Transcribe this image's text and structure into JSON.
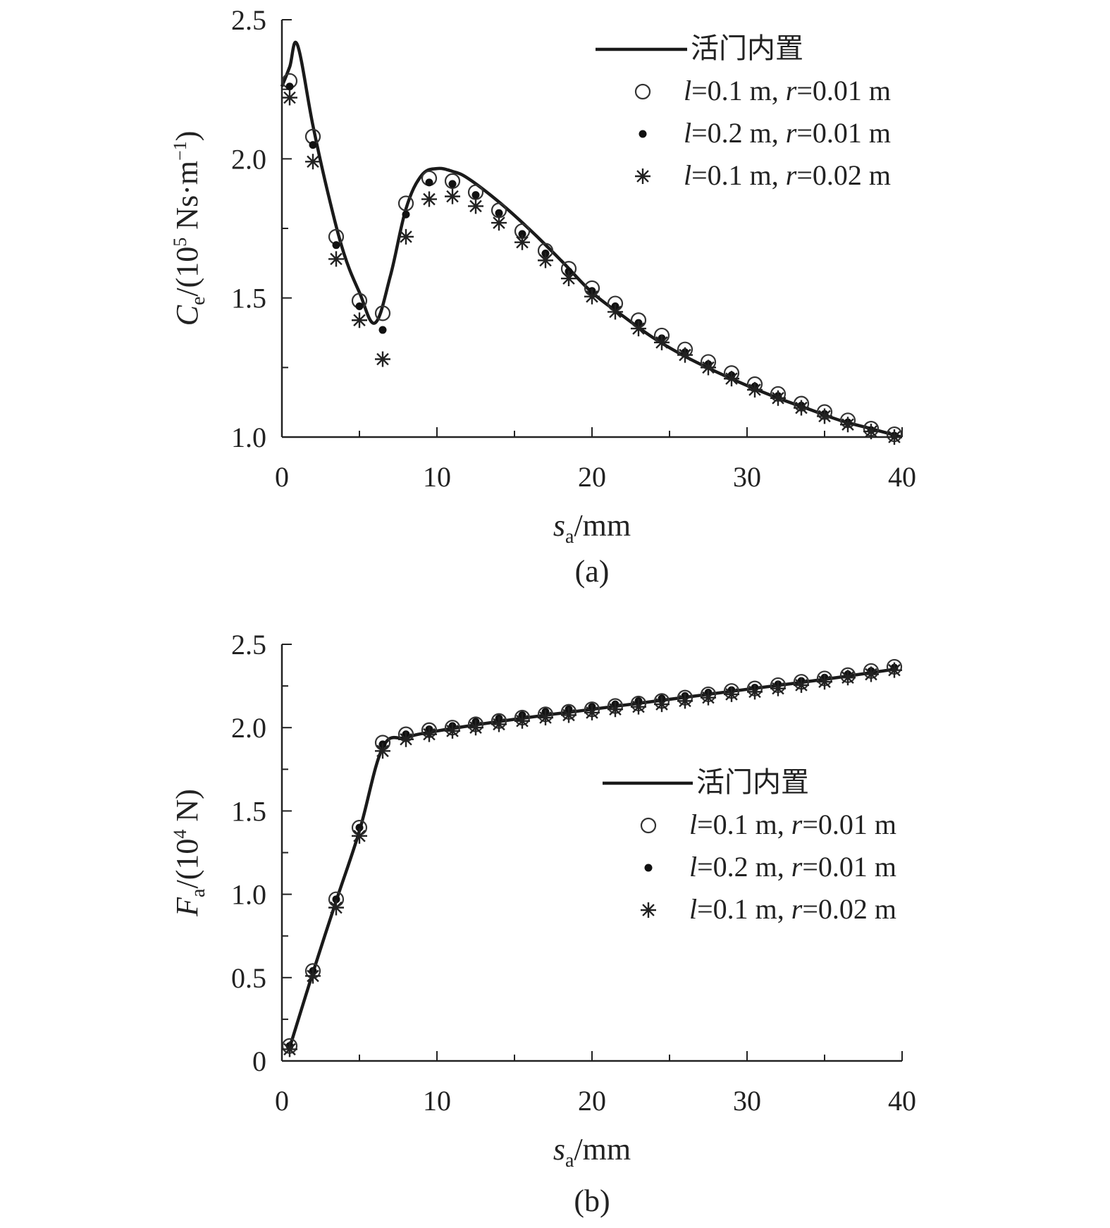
{
  "chart_data": [
    {
      "type": "line",
      "panel_label": "(a)",
      "xlabel": {
        "main": "s",
        "sub": "a",
        "unit": "/mm"
      },
      "ylabel": {
        "main": "C",
        "sub": "e",
        "pre": "/(10",
        "exp": "5",
        "mid": " Ns·m",
        "exp2": "−1",
        "post": ")"
      },
      "xlim": [
        0,
        40
      ],
      "ylim": [
        1.0,
        2.5
      ],
      "xticks": [
        0,
        10,
        20,
        30,
        40
      ],
      "yticks": [
        1.0,
        1.5,
        2.0,
        2.5
      ],
      "xtick_labels": [
        "0",
        "10",
        "20",
        "30",
        "40"
      ],
      "ytick_labels": [
        "1.0",
        "1.5",
        "2.0",
        "2.5"
      ],
      "legend_position": "top-right",
      "series": [
        {
          "name": "活门内置",
          "marker": "line",
          "x": [
            0,
            0.5,
            1,
            2,
            3,
            4,
            5,
            6,
            7,
            8,
            9,
            10,
            11,
            12,
            14,
            16,
            18,
            20,
            22,
            24,
            26,
            28,
            30,
            32,
            34,
            36,
            38,
            40
          ],
          "y": [
            2.26,
            2.33,
            2.41,
            2.12,
            1.87,
            1.66,
            1.52,
            1.41,
            1.58,
            1.82,
            1.94,
            1.965,
            1.955,
            1.93,
            1.845,
            1.745,
            1.635,
            1.52,
            1.435,
            1.355,
            1.29,
            1.235,
            1.185,
            1.14,
            1.1,
            1.06,
            1.03,
            1.0
          ]
        },
        {
          "name_parts": [
            "l",
            "=0.1 m, ",
            "r",
            "=0.01 m"
          ],
          "marker": "circle",
          "x": [
            0.5,
            2,
            3.5,
            5,
            6.5,
            8,
            9.5,
            11,
            12.5,
            14,
            15.5,
            17,
            18.5,
            20,
            21.5,
            23,
            24.5,
            26,
            27.5,
            29,
            30.5,
            32,
            33.5,
            35,
            36.5,
            38,
            39.5
          ],
          "y": [
            2.28,
            2.08,
            1.72,
            1.49,
            1.445,
            1.84,
            1.93,
            1.92,
            1.88,
            1.815,
            1.74,
            1.67,
            1.605,
            1.535,
            1.48,
            1.42,
            1.365,
            1.315,
            1.27,
            1.23,
            1.19,
            1.155,
            1.12,
            1.09,
            1.06,
            1.03,
            1.01
          ]
        },
        {
          "name_parts": [
            "l",
            "=0.2 m, ",
            "r",
            "=0.01 m"
          ],
          "marker": "dot",
          "x": [
            0.5,
            2,
            3.5,
            5,
            6.5,
            8,
            9.5,
            11,
            12.5,
            14,
            15.5,
            17,
            18.5,
            20,
            21.5,
            23,
            24.5,
            26,
            27.5,
            29,
            30.5,
            32,
            33.5,
            35,
            36.5,
            38,
            39.5
          ],
          "y": [
            2.26,
            2.05,
            1.69,
            1.47,
            1.385,
            1.8,
            1.915,
            1.91,
            1.87,
            1.805,
            1.73,
            1.66,
            1.595,
            1.525,
            1.47,
            1.41,
            1.355,
            1.305,
            1.262,
            1.222,
            1.182,
            1.148,
            1.113,
            1.083,
            1.053,
            1.025,
            1.005
          ]
        },
        {
          "name_parts": [
            "l",
            "=0.1 m, ",
            "r",
            "=0.02 m"
          ],
          "marker": "asterisk",
          "x": [
            0.5,
            2,
            3.5,
            5,
            6.5,
            8,
            9.5,
            11,
            12.5,
            14,
            15.5,
            17,
            18.5,
            20,
            21.5,
            23,
            24.5,
            26,
            27.5,
            29,
            30.5,
            32,
            33.5,
            35,
            36.5,
            38,
            39.5
          ],
          "y": [
            2.22,
            1.99,
            1.64,
            1.42,
            1.28,
            1.72,
            1.855,
            1.865,
            1.83,
            1.77,
            1.7,
            1.635,
            1.57,
            1.505,
            1.45,
            1.39,
            1.34,
            1.295,
            1.25,
            1.21,
            1.17,
            1.14,
            1.105,
            1.075,
            1.045,
            1.02,
            1.0
          ]
        }
      ]
    },
    {
      "type": "line",
      "panel_label": "(b)",
      "xlabel": {
        "main": "s",
        "sub": "a",
        "unit": "/mm"
      },
      "ylabel": {
        "main": "F",
        "sub": "a",
        "pre": "/(10",
        "exp": "4",
        "mid": " N",
        "exp2": "",
        "post": ")"
      },
      "xlim": [
        0,
        40
      ],
      "ylim": [
        0,
        2.5
      ],
      "xticks": [
        0,
        10,
        20,
        30,
        40
      ],
      "yticks": [
        0,
        0.5,
        1.0,
        1.5,
        2.0,
        2.5
      ],
      "xtick_labels": [
        "0",
        "10",
        "20",
        "30",
        "40"
      ],
      "ytick_labels": [
        "0",
        "0.5",
        "1.0",
        "1.5",
        "2.0",
        "2.5"
      ],
      "legend_position": "center-right",
      "series": [
        {
          "name": "活门内置",
          "marker": "line",
          "x": [
            0.5,
            2,
            3.5,
            5,
            6.5,
            8,
            10,
            15,
            20,
            25,
            30,
            35,
            39.5
          ],
          "y": [
            0.08,
            0.53,
            0.96,
            1.38,
            1.88,
            1.94,
            1.98,
            2.05,
            2.11,
            2.17,
            2.23,
            2.29,
            2.35
          ]
        },
        {
          "name_parts": [
            "l",
            "=0.1 m, ",
            "r",
            "=0.01 m"
          ],
          "marker": "circle",
          "x": [
            0.5,
            2,
            3.5,
            5,
            6.5,
            8,
            9.5,
            11,
            12.5,
            14,
            15.5,
            17,
            18.5,
            20,
            21.5,
            23,
            24.5,
            26,
            27.5,
            29,
            30.5,
            32,
            33.5,
            35,
            36.5,
            38,
            39.5
          ],
          "y": [
            0.09,
            0.54,
            0.97,
            1.4,
            1.91,
            1.96,
            1.985,
            2.0,
            2.02,
            2.04,
            2.06,
            2.08,
            2.095,
            2.11,
            2.13,
            2.145,
            2.16,
            2.18,
            2.2,
            2.22,
            2.235,
            2.255,
            2.275,
            2.295,
            2.315,
            2.34,
            2.365
          ]
        },
        {
          "name_parts": [
            "l",
            "=0.2 m, ",
            "r",
            "=0.01 m"
          ],
          "marker": "dot",
          "x": [
            0.5,
            2,
            3.5,
            5,
            6.5,
            8,
            9.5,
            11,
            12.5,
            14,
            15.5,
            17,
            18.5,
            20,
            21.5,
            23,
            24.5,
            26,
            27.5,
            29,
            30.5,
            32,
            33.5,
            35,
            36.5,
            38,
            39.5
          ],
          "y": [
            0.09,
            0.54,
            0.97,
            1.4,
            1.9,
            1.96,
            1.99,
            2.01,
            2.035,
            2.055,
            2.075,
            2.095,
            2.11,
            2.125,
            2.14,
            2.16,
            2.175,
            2.19,
            2.21,
            2.225,
            2.24,
            2.26,
            2.28,
            2.3,
            2.32,
            2.34,
            2.36
          ]
        },
        {
          "name_parts": [
            "l",
            "=0.1 m, ",
            "r",
            "=0.02 m"
          ],
          "marker": "asterisk",
          "x": [
            0.5,
            2,
            3.5,
            5,
            6.5,
            8,
            9.5,
            11,
            12.5,
            14,
            15.5,
            17,
            18.5,
            20,
            21.5,
            23,
            24.5,
            26,
            27.5,
            29,
            30.5,
            32,
            33.5,
            35,
            36.5,
            38,
            39.5
          ],
          "y": [
            0.07,
            0.51,
            0.92,
            1.35,
            1.86,
            1.93,
            1.96,
            1.98,
            2.0,
            2.02,
            2.04,
            2.06,
            2.075,
            2.09,
            2.11,
            2.125,
            2.14,
            2.16,
            2.18,
            2.2,
            2.215,
            2.235,
            2.255,
            2.275,
            2.3,
            2.32,
            2.345
          ]
        }
      ]
    }
  ]
}
